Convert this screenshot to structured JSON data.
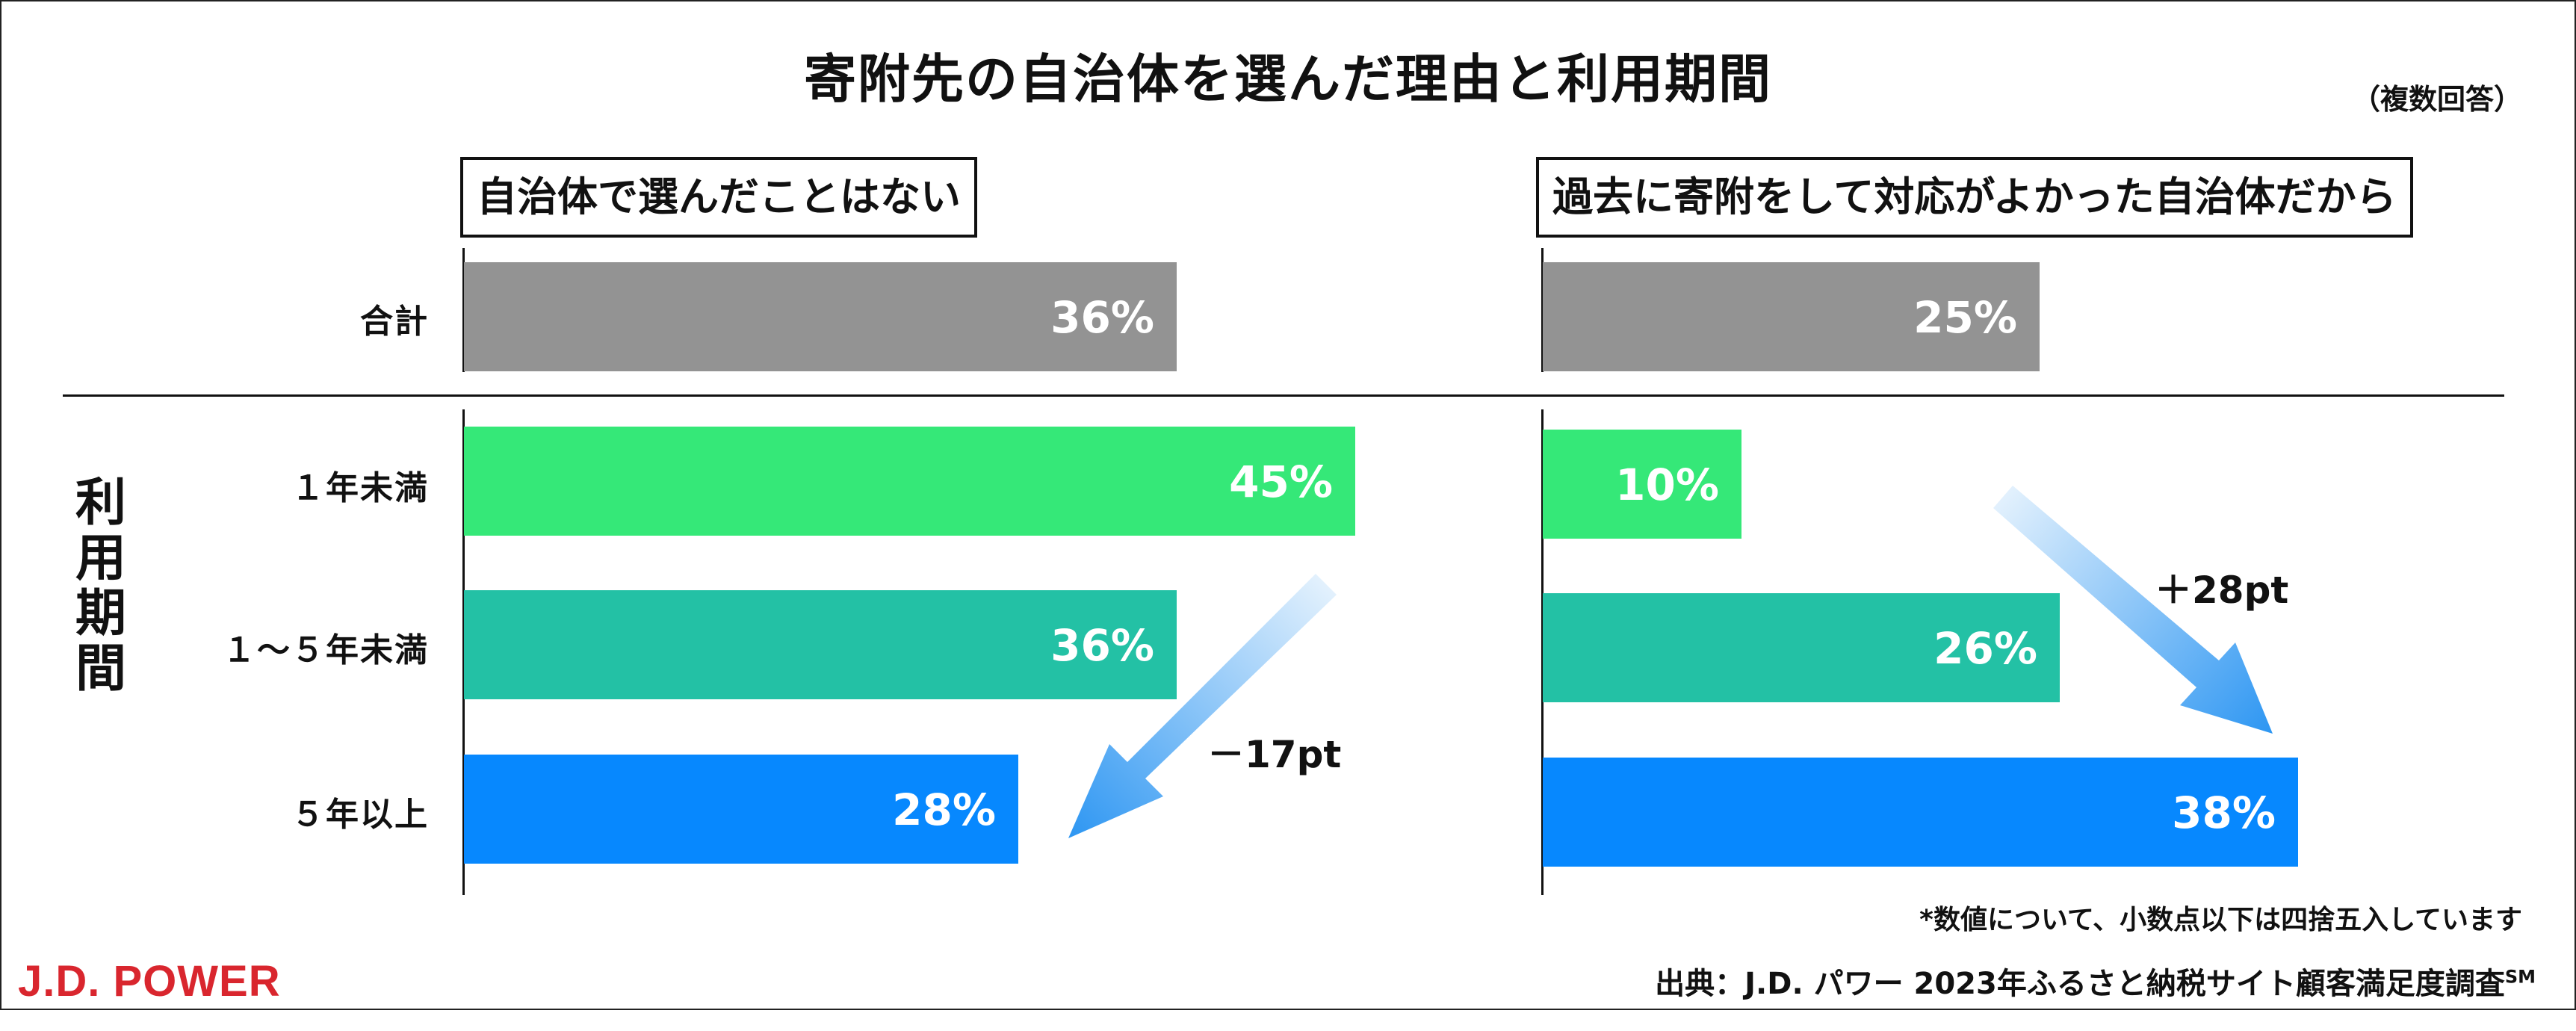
{
  "title": "寄附先の自治体を選んだ理由と利用期間",
  "note_multiple": "（複数回答）",
  "row_group_label": "利用期間",
  "arrow_left_label": "－17pt",
  "arrow_right_label": "＋28pt",
  "footnote": "*数値について、小数点以下は四捨五入しています",
  "source_prefix": "出典：J.D. パワー 2023年ふるさと納税サイト顧客満足度調査",
  "source_superscript": "SM",
  "logo_text": "J.D. POWER",
  "colors": {
    "total": "#939393",
    "under_1_year": "#35e878",
    "1_to_5_years": "#23c1a5",
    "over_5_years": "#0788fe",
    "arrow_light": "#d8ecfc",
    "arrow_dark": "#2d96f2",
    "logo": "#d9262e"
  },
  "chart_data": [
    {
      "type": "bar",
      "orientation": "horizontal",
      "title": "自治体で選んだことはない",
      "categories": [
        "合計",
        "１年未満",
        "１～５年未満",
        "５年以上"
      ],
      "values": [
        36,
        45,
        36,
        28
      ],
      "labels": [
        "36%",
        "45%",
        "36%",
        "28%"
      ],
      "unit": "%"
    },
    {
      "type": "bar",
      "orientation": "horizontal",
      "title": "過去に寄附をして対応がよかった自治体だから",
      "categories": [
        "合計",
        "１年未満",
        "１～５年未満",
        "５年以上"
      ],
      "values": [
        25,
        10,
        26,
        38
      ],
      "labels": [
        "25%",
        "10%",
        "26%",
        "38%"
      ],
      "unit": "%"
    }
  ]
}
